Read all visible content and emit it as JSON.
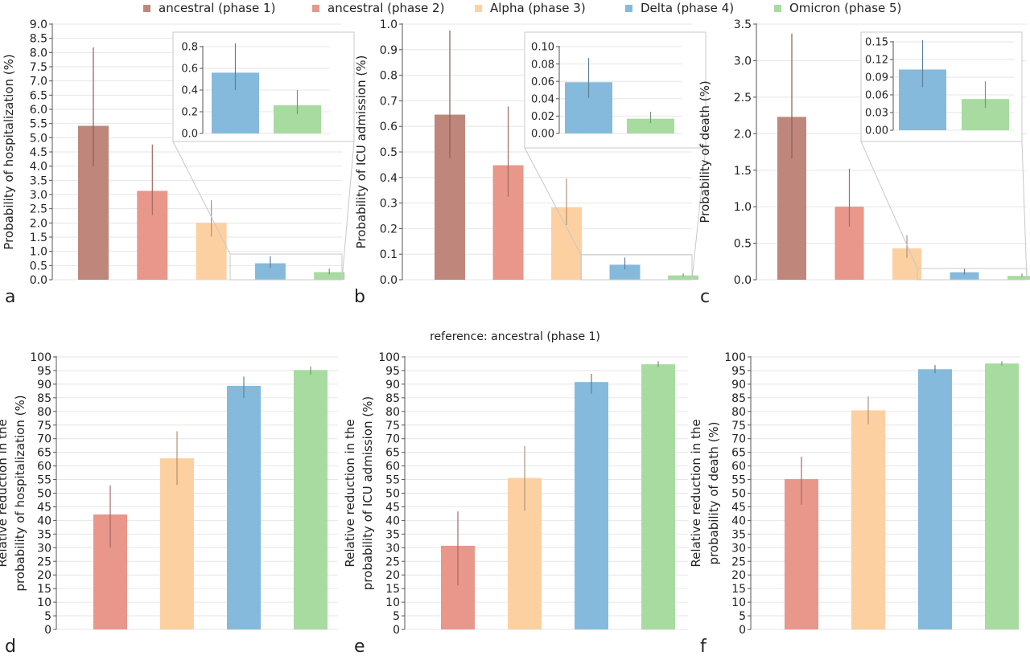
{
  "legend": [
    {
      "label": "ancestral (phase 1)",
      "color": "#bf877c"
    },
    {
      "label": "ancestral (phase 2)",
      "color": "#e8978a"
    },
    {
      "label": "Alpha (phase 3)",
      "color": "#fdd0a2"
    },
    {
      "label": "Delta (phase 4)",
      "color": "#85badc"
    },
    {
      "label": "Omicron (phase 5)",
      "color": "#a8dba0"
    }
  ],
  "reference_label": "reference: ancestral (phase 1)",
  "chart_data": [
    {
      "panel": "a",
      "type": "bar",
      "ylabel": "Probability of hospitalization (%)",
      "ylim": [
        0,
        9
      ],
      "ytick_step": 0.5,
      "ytick_decimals": 1,
      "categories": [
        "ancestral (phase 1)",
        "ancestral (phase 2)",
        "Alpha (phase 3)",
        "Delta (phase 4)",
        "Omicron (phase 5)"
      ],
      "values": [
        5.42,
        3.13,
        2.0,
        0.58,
        0.27
      ],
      "error_low": [
        4.0,
        2.28,
        1.52,
        0.42,
        0.19
      ],
      "error_high": [
        8.18,
        4.76,
        2.8,
        0.83,
        0.4
      ],
      "inset": {
        "categories": [
          "Delta (phase 4)",
          "Omicron (phase 5)"
        ],
        "values": [
          0.56,
          0.26
        ],
        "error_low": [
          0.4,
          0.18
        ],
        "error_high": [
          0.83,
          0.4
        ],
        "ylim": [
          0,
          0.8
        ],
        "ytick_step": 0.2,
        "ytick_decimals": 1
      }
    },
    {
      "panel": "b",
      "type": "bar",
      "ylabel": "Probability of ICU admission (%)",
      "ylim": [
        0,
        1.0
      ],
      "ytick_step": 0.1,
      "ytick_decimals": 1,
      "categories": [
        "ancestral (phase 1)",
        "ancestral (phase 2)",
        "Alpha (phase 3)",
        "Delta (phase 4)",
        "Omicron (phase 5)"
      ],
      "values": [
        0.646,
        0.448,
        0.284,
        0.059,
        0.017
      ],
      "error_low": [
        0.477,
        0.325,
        0.214,
        0.041,
        0.012
      ],
      "error_high": [
        0.975,
        0.678,
        0.396,
        0.087,
        0.025
      ],
      "inset": {
        "categories": [
          "Delta (phase 4)",
          "Omicron (phase 5)"
        ],
        "values": [
          0.059,
          0.017
        ],
        "error_low": [
          0.041,
          0.012
        ],
        "error_high": [
          0.087,
          0.025
        ],
        "ylim": [
          0,
          0.1
        ],
        "ytick_step": 0.02,
        "ytick_decimals": 2
      }
    },
    {
      "panel": "c",
      "type": "bar",
      "ylabel": "Probability of death (%)",
      "ylim": [
        0,
        3.5
      ],
      "ytick_step": 0.5,
      "ytick_decimals": 1,
      "categories": [
        "ancestral (phase 1)",
        "ancestral (phase 2)",
        "Alpha (phase 3)",
        "Delta (phase 4)",
        "Omicron (phase 5)"
      ],
      "values": [
        2.23,
        1.0,
        0.43,
        0.103,
        0.053
      ],
      "error_low": [
        1.66,
        0.73,
        0.3,
        0.073,
        0.038
      ],
      "error_high": [
        3.37,
        1.52,
        0.61,
        0.153,
        0.083
      ],
      "inset": {
        "categories": [
          "Delta (phase 4)",
          "Omicron (phase 5)"
        ],
        "values": [
          0.103,
          0.053
        ],
        "error_low": [
          0.073,
          0.038
        ],
        "error_high": [
          0.153,
          0.083
        ],
        "ylim": [
          0,
          0.15
        ],
        "ytick_step": 0.03,
        "ytick_decimals": 2
      }
    },
    {
      "panel": "d",
      "type": "bar",
      "ylabel": [
        "Relative reduction in the",
        "probability of hospitalization (%)"
      ],
      "ylim": [
        0,
        100
      ],
      "ytick_step": 5,
      "ytick_decimals": 0,
      "categories": [
        "ancestral (phase 2)",
        "Alpha (phase 3)",
        "Delta (phase 4)",
        "Omicron (phase 5)"
      ],
      "values": [
        42.2,
        62.8,
        89.4,
        95.2
      ],
      "error_low": [
        30.0,
        53.0,
        85.0,
        93.5
      ],
      "error_high": [
        52.8,
        72.7,
        92.8,
        96.5
      ]
    },
    {
      "panel": "e",
      "type": "bar",
      "ylabel": [
        "Relative reduction in the",
        "probability of ICU admission (%)"
      ],
      "ylim": [
        0,
        100
      ],
      "ytick_step": 5,
      "ytick_decimals": 0,
      "categories": [
        "ancestral (phase 2)",
        "Alpha (phase 3)",
        "Delta (phase 4)",
        "Omicron (phase 5)"
      ],
      "values": [
        30.7,
        55.6,
        90.8,
        97.3
      ],
      "error_low": [
        16.2,
        43.5,
        86.5,
        96.3
      ],
      "error_high": [
        43.3,
        67.3,
        93.8,
        98.4
      ]
    },
    {
      "panel": "f",
      "type": "bar",
      "ylabel": [
        "Relative reduction in the",
        "probability of death (%)"
      ],
      "ylim": [
        0,
        100
      ],
      "ytick_step": 5,
      "ytick_decimals": 0,
      "categories": [
        "ancestral (phase 2)",
        "Alpha (phase 3)",
        "Delta (phase 4)",
        "Omicron (phase 5)"
      ],
      "values": [
        55.2,
        80.4,
        95.5,
        97.6
      ],
      "error_low": [
        45.8,
        75.3,
        94.0,
        96.8
      ],
      "error_high": [
        63.4,
        85.5,
        97.0,
        98.4
      ]
    }
  ]
}
